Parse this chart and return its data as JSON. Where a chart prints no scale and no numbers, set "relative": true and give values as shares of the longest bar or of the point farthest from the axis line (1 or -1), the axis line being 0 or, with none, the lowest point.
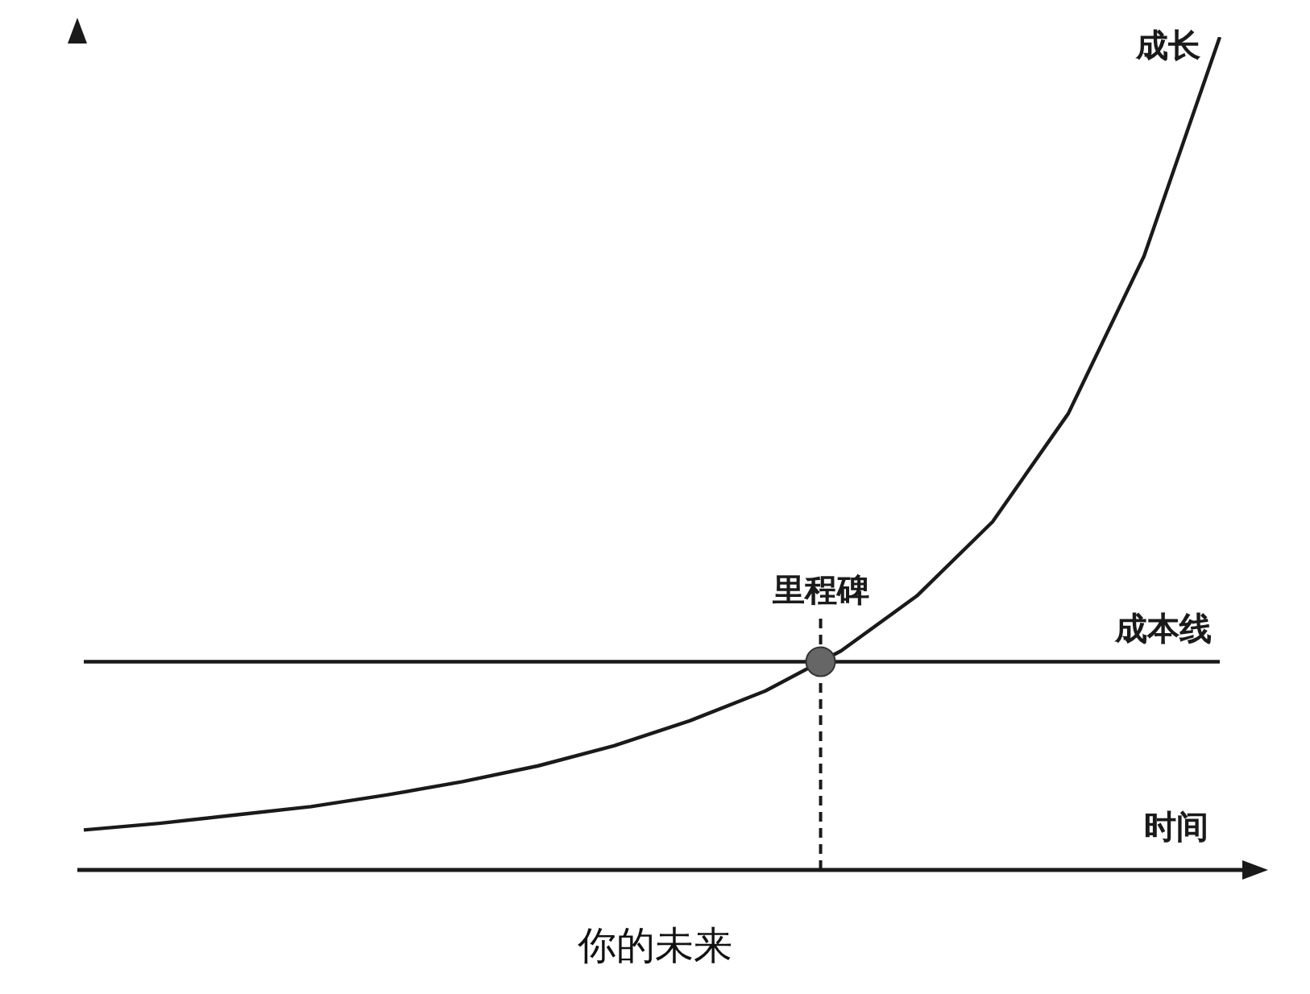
{
  "chart_data": {
    "type": "line",
    "title": "你的未来",
    "xlabel": "时间",
    "relative": true,
    "legend": false,
    "grid": false,
    "line_style": "solid",
    "annotations": [
      "里程碑"
    ],
    "categories": [
      null,
      null,
      null,
      null,
      null,
      null,
      null,
      null,
      null,
      null,
      null,
      null,
      null,
      null,
      null,
      null
    ],
    "series": [
      {
        "name": "成长",
        "color": "#1a1a1a",
        "values": [
          0.048,
          0.056,
          0.066,
          0.076,
          0.09,
          0.106,
          0.125,
          0.149,
          0.179,
          0.215,
          0.263,
          0.329,
          0.418,
          0.548,
          0.737,
          1
        ]
      },
      {
        "name": "成本线",
        "color": "#1a1a1a",
        "values": [
          0.25,
          0.25,
          0.25,
          0.25,
          0.25,
          0.25,
          0.25,
          0.25,
          0.25,
          0.25,
          0.25,
          0.25,
          0.25,
          0.25,
          0.25,
          0.25
        ]
      }
    ]
  }
}
